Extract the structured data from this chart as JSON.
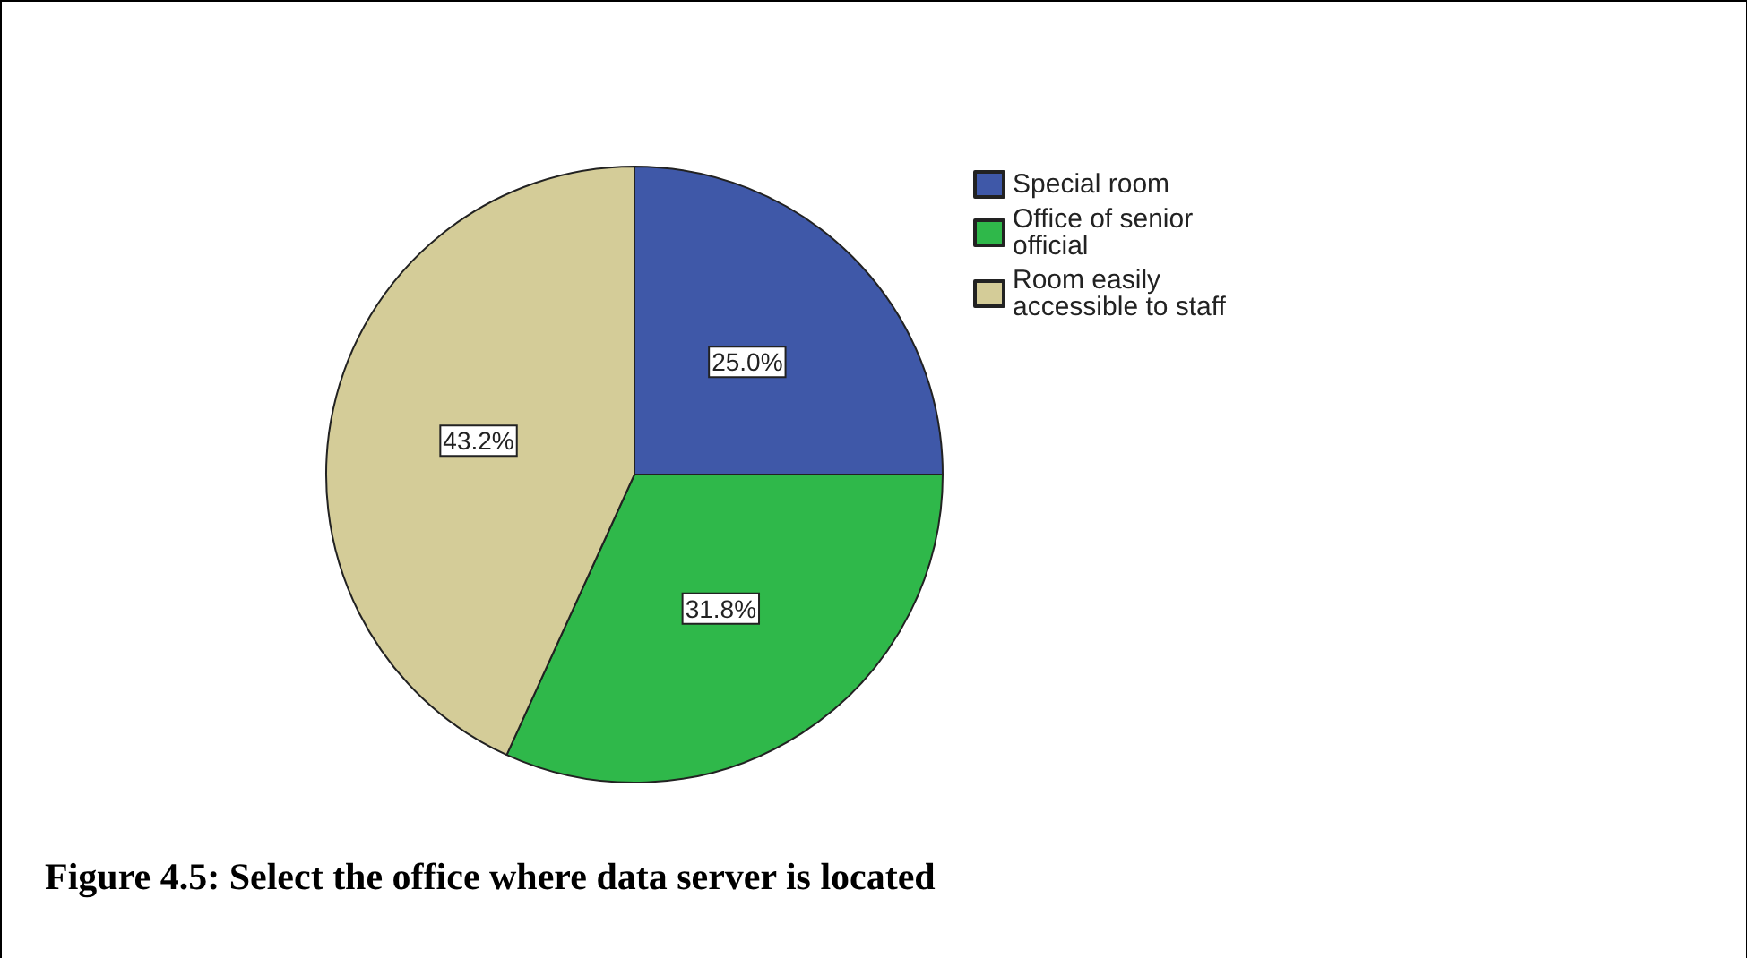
{
  "chart_data": {
    "type": "pie",
    "title": "Figure 4.5: Select the office where data server is located",
    "categories": [
      "Special room",
      "Office of senior official",
      "Room easily accessible to staff"
    ],
    "values": [
      25.0,
      31.8,
      43.2
    ],
    "value_labels": [
      "25.0%",
      "31.8%",
      "43.2%"
    ],
    "colors": [
      "#3f58a8",
      "#2fb84a",
      "#d4cc98"
    ],
    "legend": "top right"
  }
}
